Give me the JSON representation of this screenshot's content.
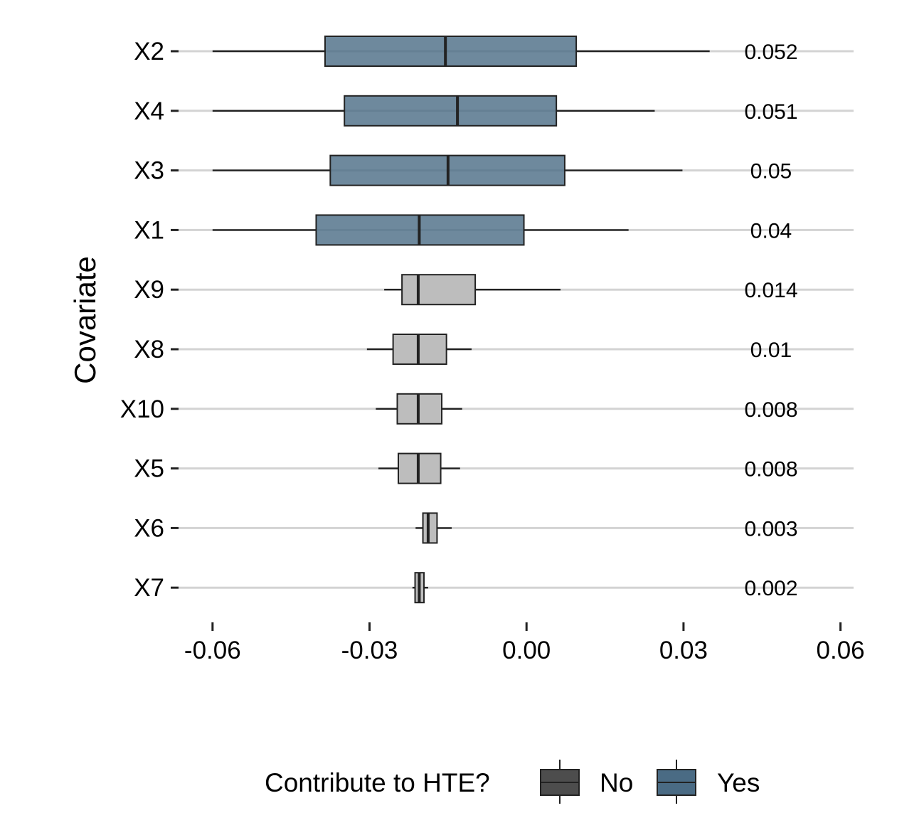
{
  "chart_data": {
    "type": "boxplot",
    "ylabel": "Covariate",
    "xlabel": "",
    "xlim": [
      -0.0665,
      0.0625
    ],
    "x_ticks": [
      -0.06,
      -0.03,
      0.0,
      0.03,
      0.06
    ],
    "x_tick_labels": [
      "-0.06",
      "-0.03",
      "0.00",
      "0.03",
      "0.06"
    ],
    "grid": "horizontal",
    "legend": {
      "title": "Contribute to HTE?",
      "position": "bottom",
      "items": [
        {
          "label": "No",
          "fill": "#4d4d4d"
        },
        {
          "label": "Yes",
          "fill": "#4a6b84"
        }
      ]
    },
    "colors": {
      "yes_fill": "#4a6b84",
      "no_fill": "#bdbdbd",
      "outline": "#222222",
      "grid": "#d3d3d3"
    },
    "categories": [
      "X2",
      "X4",
      "X3",
      "X1",
      "X9",
      "X8",
      "X10",
      "X5",
      "X6",
      "X7"
    ],
    "boxes": [
      {
        "label": "X2",
        "min": -0.06,
        "q1": -0.0385,
        "median": -0.0155,
        "q3": 0.0095,
        "max": 0.035,
        "contributes": "Yes",
        "value": "0.052"
      },
      {
        "label": "X4",
        "min": -0.06,
        "q1": -0.0348,
        "median": -0.0132,
        "q3": 0.0057,
        "max": 0.0245,
        "contributes": "Yes",
        "value": "0.051"
      },
      {
        "label": "X3",
        "min": -0.06,
        "q1": -0.0375,
        "median": -0.015,
        "q3": 0.0073,
        "max": 0.0298,
        "contributes": "Yes",
        "value": "0.05"
      },
      {
        "label": "X1",
        "min": -0.06,
        "q1": -0.0402,
        "median": -0.0205,
        "q3": -0.0005,
        "max": 0.0195,
        "contributes": "Yes",
        "value": "0.04"
      },
      {
        "label": "X9",
        "min": -0.0272,
        "q1": -0.0238,
        "median": -0.0207,
        "q3": -0.0098,
        "max": 0.0065,
        "contributes": "No",
        "value": "0.014"
      },
      {
        "label": "X8",
        "min": -0.0305,
        "q1": -0.0255,
        "median": -0.0207,
        "q3": -0.0153,
        "max": -0.0105,
        "contributes": "No",
        "value": "0.01"
      },
      {
        "label": "X10",
        "min": -0.0288,
        "q1": -0.0247,
        "median": -0.0207,
        "q3": -0.0162,
        "max": -0.0123,
        "contributes": "No",
        "value": "0.008"
      },
      {
        "label": "X5",
        "min": -0.0283,
        "q1": -0.0245,
        "median": -0.0207,
        "q3": -0.0164,
        "max": -0.0127,
        "contributes": "No",
        "value": "0.008"
      },
      {
        "label": "X6",
        "min": -0.0212,
        "q1": -0.0198,
        "median": -0.0188,
        "q3": -0.0171,
        "max": -0.0143,
        "contributes": "No",
        "value": "0.003"
      },
      {
        "label": "X7",
        "min": -0.0218,
        "q1": -0.0213,
        "median": -0.0205,
        "q3": -0.0196,
        "max": -0.0188,
        "contributes": "No",
        "value": "0.002"
      }
    ]
  }
}
